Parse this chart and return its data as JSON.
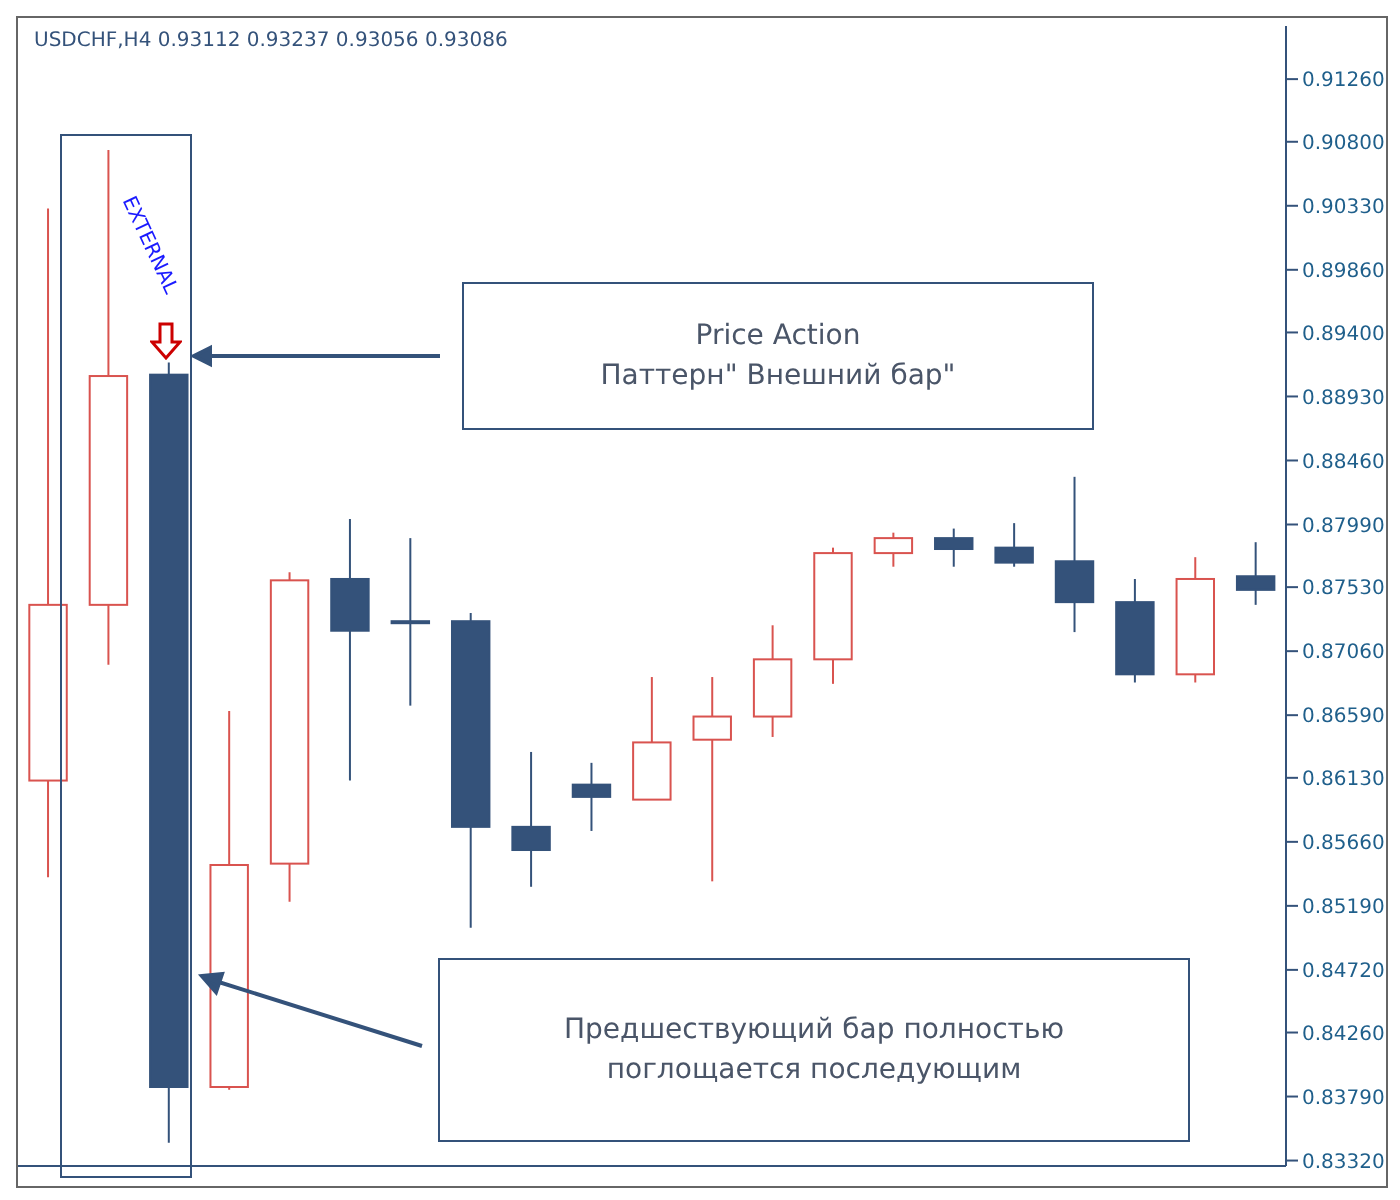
{
  "chart_data": {
    "type": "candlestick",
    "title": "USDCHF,H4  0.93112 0.93237 0.93056 0.93086",
    "categories": [
      null,
      null,
      null,
      null,
      null,
      null,
      null,
      null,
      null,
      null,
      null,
      null,
      null,
      null,
      null,
      null,
      null,
      null,
      null,
      null,
      null
    ],
    "ohlc": [
      [
        0.8611,
        0.9031,
        0.854,
        0.874
      ],
      [
        0.874,
        0.9074,
        0.8696,
        0.8908
      ],
      [
        0.8909,
        0.8918,
        0.8345,
        0.8386
      ],
      [
        0.8386,
        0.8662,
        0.8384,
        0.8549
      ],
      [
        0.855,
        0.8764,
        0.8522,
        0.8758
      ],
      [
        0.8759,
        0.8803,
        0.8611,
        0.8721
      ],
      [
        0.8728,
        0.8789,
        0.8666,
        0.8727
      ],
      [
        0.8728,
        0.8734,
        0.8503,
        0.8577
      ],
      [
        0.8577,
        0.8632,
        0.8533,
        0.856
      ],
      [
        0.8608,
        0.8624,
        0.8574,
        0.8599
      ],
      [
        0.8597,
        0.8687,
        0.8597,
        0.8639
      ],
      [
        0.8641,
        0.8687,
        0.8537,
        0.8658
      ],
      [
        0.8658,
        0.8725,
        0.8643,
        0.87
      ],
      [
        0.87,
        0.8782,
        0.8682,
        0.8778
      ],
      [
        0.8778,
        0.8793,
        0.8768,
        0.8789
      ],
      [
        0.8789,
        0.8796,
        0.8768,
        0.8781
      ],
      [
        0.8782,
        0.88,
        0.8768,
        0.8771
      ],
      [
        0.8772,
        0.8834,
        0.872,
        0.8742
      ],
      [
        0.8742,
        0.8759,
        0.8683,
        0.8689
      ],
      [
        0.8689,
        0.8775,
        0.8683,
        0.8759
      ],
      [
        0.8761,
        0.8786,
        0.874,
        0.8751
      ]
    ],
    "colors": [
      "#d9534f",
      "#d9534f",
      "#34527a",
      "#d9534f",
      "#d9534f",
      "#34527a",
      "#34527a",
      "#34527a",
      "#34527a",
      "#34527a",
      "#d9534f",
      "#d9534f",
      "#d9534f",
      "#d9534f",
      "#d9534f",
      "#34527a",
      "#34527a",
      "#34527a",
      "#34527a",
      "#d9534f",
      "#34527a"
    ],
    "ylim": [
      0.8328,
      0.9165
    ],
    "yticks": [
      {
        "value": 0.8332,
        "label": "0.83320"
      },
      {
        "value": 0.8379,
        "label": "0.83790"
      },
      {
        "value": 0.8426,
        "label": "0.84260"
      },
      {
        "value": 0.8472,
        "label": "0.84720"
      },
      {
        "value": 0.8519,
        "label": "0.85190"
      },
      {
        "value": 0.8566,
        "label": "0.85660"
      },
      {
        "value": 0.8613,
        "label": "0.86130"
      },
      {
        "value": 0.8659,
        "label": "0.86590"
      },
      {
        "value": 0.8706,
        "label": "0.87060"
      },
      {
        "value": 0.8753,
        "label": "0.87530"
      },
      {
        "value": 0.8799,
        "label": "0.87990"
      },
      {
        "value": 0.8846,
        "label": "0.88460"
      },
      {
        "value": 0.8893,
        "label": "0.88930"
      },
      {
        "value": 0.894,
        "label": "0.89400"
      },
      {
        "value": 0.8986,
        "label": "0.89860"
      },
      {
        "value": 0.9033,
        "label": "0.90330"
      },
      {
        "value": 0.908,
        "label": "0.90800"
      },
      {
        "value": 0.9126,
        "label": "0.91260"
      }
    ],
    "annotations": [
      "EXTERNAL",
      "Price Action\nПаттерн\" Внешний бар\"",
      "Предшествующий бар полностью поглощается последующим"
    ],
    "tick_labels": "y"
  }
}
